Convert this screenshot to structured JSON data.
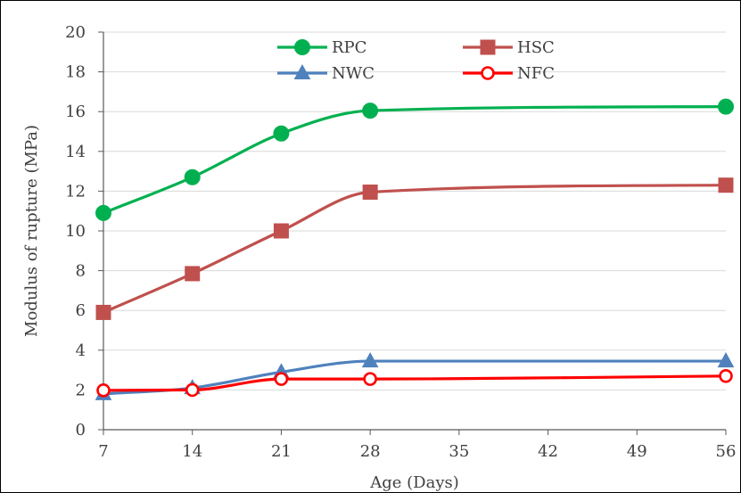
{
  "chart_data": {
    "type": "line",
    "title": "",
    "xlabel": "Age (Days)",
    "ylabel": "Modulus of rupture (MPa)",
    "x": [
      7,
      14,
      21,
      28,
      56
    ],
    "xticks": [
      7,
      14,
      21,
      28,
      35,
      42,
      49,
      56
    ],
    "xlim": [
      7,
      56
    ],
    "yticks": [
      0,
      2,
      4,
      6,
      8,
      10,
      12,
      14,
      16,
      18,
      20
    ],
    "ylim": [
      0,
      20
    ],
    "grid": "horizontal",
    "legend_position": "top-center",
    "smooth": true,
    "series": [
      {
        "name": "RPC",
        "values": [
          10.9,
          12.7,
          14.9,
          16.05,
          16.25
        ],
        "color": "#00B050",
        "marker": "circle-filled"
      },
      {
        "name": "HSC",
        "values": [
          5.9,
          7.85,
          10.0,
          11.95,
          12.3
        ],
        "color": "#C0504D",
        "marker": "square"
      },
      {
        "name": "NWC",
        "values": [
          1.8,
          2.1,
          2.9,
          3.45,
          3.45
        ],
        "color": "#4F81BD",
        "marker": "triangle"
      },
      {
        "name": "NFC",
        "values": [
          1.98,
          2.0,
          2.55,
          2.55,
          2.7
        ],
        "color": "#FF0000",
        "marker": "circle-open"
      }
    ]
  }
}
